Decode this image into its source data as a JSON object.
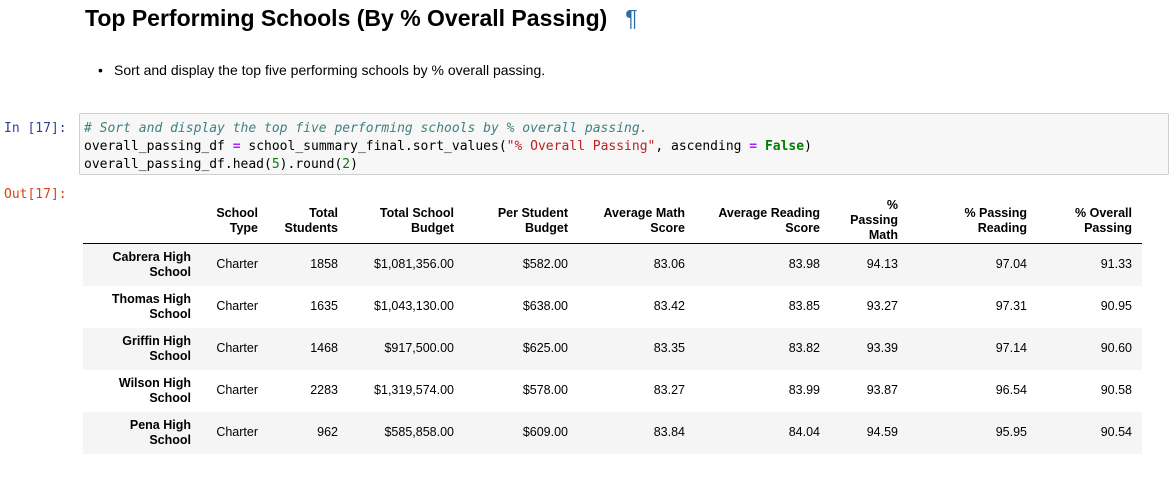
{
  "heading": {
    "title": "Top Performing Schools (By % Overall Passing)",
    "anchor": "¶"
  },
  "bullet": {
    "text": "Sort and display the top five performing schools by % overall passing."
  },
  "cell": {
    "in_prompt": "In [17]:",
    "out_prompt": "Out[17]:",
    "code": {
      "comment": "# Sort and display the top five performing schools by % overall passing.",
      "line2_a": "overall_passing_df ",
      "line2_op": "=",
      "line2_b": " school_summary_final.sort_values(",
      "line2_str": "\"% Overall Passing\"",
      "line2_c": ", ascending ",
      "line2_op2": "=",
      "line2_sp": " ",
      "line2_kw": "False",
      "line2_d": ")",
      "line3_a": "overall_passing_df.head(",
      "line3_num1": "5",
      "line3_b": ").round(",
      "line3_num2": "2",
      "line3_c": ")"
    }
  },
  "table": {
    "headers": [
      [
        "",
        ""
      ],
      [
        "School",
        "Type"
      ],
      [
        "Total",
        "Students"
      ],
      [
        "Total School",
        "Budget"
      ],
      [
        "Per Student",
        "Budget"
      ],
      [
        "Average Math",
        "Score"
      ],
      [
        "Average Reading",
        "Score"
      ],
      [
        "% Passing",
        "Math"
      ],
      [
        "% Passing",
        "Reading"
      ],
      [
        "% Overall",
        "Passing"
      ]
    ],
    "rows": [
      {
        "name": [
          "Cabrera High",
          "School"
        ],
        "cells": [
          "Charter",
          "1858",
          "$1,081,356.00",
          "$582.00",
          "83.06",
          "83.98",
          "94.13",
          "97.04",
          "91.33"
        ]
      },
      {
        "name": [
          "Thomas High",
          "School"
        ],
        "cells": [
          "Charter",
          "1635",
          "$1,043,130.00",
          "$638.00",
          "83.42",
          "83.85",
          "93.27",
          "97.31",
          "90.95"
        ]
      },
      {
        "name": [
          "Griffin High",
          "School"
        ],
        "cells": [
          "Charter",
          "1468",
          "$917,500.00",
          "$625.00",
          "83.35",
          "83.82",
          "93.39",
          "97.14",
          "90.60"
        ]
      },
      {
        "name": [
          "Wilson High",
          "School"
        ],
        "cells": [
          "Charter",
          "2283",
          "$1,319,574.00",
          "$578.00",
          "83.27",
          "83.99",
          "93.87",
          "96.54",
          "90.58"
        ]
      },
      {
        "name": [
          "Pena High",
          "School"
        ],
        "cells": [
          "Charter",
          "962",
          "$585,858.00",
          "$609.00",
          "83.84",
          "84.04",
          "94.59",
          "95.95",
          "90.54"
        ]
      }
    ]
  }
}
